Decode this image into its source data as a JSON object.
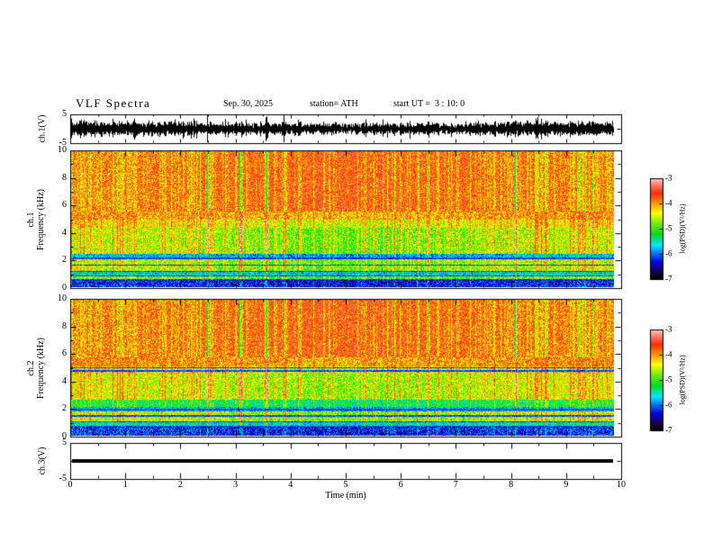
{
  "header": {
    "title": "VLF Spectra",
    "date": "Sep. 30, 2025",
    "station": "station= ATH",
    "start_ut": "start UT =  3 : 10: 0"
  },
  "xaxis": {
    "label": "Time (min)",
    "ticks": [
      "0",
      "1",
      "2",
      "3",
      "4",
      "5",
      "6",
      "7",
      "8",
      "9",
      "10"
    ]
  },
  "colorbar": {
    "label": "log(PSD)(V²/Hz)",
    "ticks": [
      "-3",
      "-4",
      "-5",
      "-6",
      "-7"
    ]
  },
  "panels": {
    "ch1_wave": {
      "ylabel": "ch.1(V)",
      "ytick_top": "5",
      "ytick_bottom": "-5"
    },
    "ch1_spec": {
      "ylabel_line1": "ch.1",
      "ylabel_line2": "Frequency (kHz)",
      "yticks": [
        "0",
        "2",
        "4",
        "6",
        "8",
        "10"
      ]
    },
    "ch2_spec": {
      "ylabel_line1": "ch.2",
      "ylabel_line2": "Frequency (kHz)",
      "yticks": [
        "0",
        "2",
        "4",
        "6",
        "8",
        "10"
      ]
    },
    "ch3_wave": {
      "ylabel": "ch.3(V)",
      "ytick_top": "5",
      "ytick_bottom": "-5"
    }
  },
  "colors": {
    "background": "#ffffff",
    "axis": "#000000",
    "trace": "#000000",
    "colormap_stops": [
      {
        "t": 0.0,
        "c": "#000000"
      },
      {
        "t": 0.06,
        "c": "#1a0040"
      },
      {
        "t": 0.16,
        "c": "#0000e0"
      },
      {
        "t": 0.26,
        "c": "#0080ff"
      },
      {
        "t": 0.33,
        "c": "#00e8ff"
      },
      {
        "t": 0.44,
        "c": "#00dd22"
      },
      {
        "t": 0.56,
        "c": "#7fee00"
      },
      {
        "t": 0.65,
        "c": "#ffff00"
      },
      {
        "t": 0.75,
        "c": "#ff9900"
      },
      {
        "t": 0.85,
        "c": "#ff2a00"
      },
      {
        "t": 0.93,
        "c": "#ff7766"
      },
      {
        "t": 1.0,
        "c": "#ffc8c8"
      }
    ]
  },
  "chart_data": [
    {
      "type": "line",
      "panel": "ch1_waveform",
      "title": "",
      "ylabel": "ch.1(V)",
      "xlabel": "Time (min)",
      "xlim": [
        0,
        10
      ],
      "ylim": [
        -5,
        5
      ],
      "x_data_span_min": 9.85,
      "description": "Dense broadband VLF voltage noise centered on 0 V with envelope about ±2 V and impulsive sferic spikes reaching ±5 V throughout the 10-minute record",
      "noise_amplitude": 1.15,
      "spike_gain": 1.9,
      "seed": 91
    },
    {
      "type": "heatmap",
      "panel": "ch1_spectrogram",
      "title": "",
      "ylabel": "ch.1 Frequency (kHz)",
      "xlabel": "Time (min)",
      "zlabel": "log(PSD)(V²/Hz)",
      "xlim": [
        0,
        10
      ],
      "ylim": [
        0,
        10
      ],
      "zlim": [
        -7,
        -3
      ],
      "x_data_span_min": 9.85,
      "noise_sigma": 0.45,
      "seed": 42,
      "streak_seed": 7,
      "description": "Spectrogram: intense red band above ~5.6 kHz (PSD ~ -3.5), yellow transition 5-5.6 kHz, green 2.5-5 kHz with vertical sferic streaks, dark blue band near 2-2.4 kHz, green 1.2-2 kHz, blue band 0.8-1.1 kHz, dark below 0.5 kHz; thin dark horizontal lines",
      "bands": [
        {
          "f0": 5.6,
          "f1": 10.01,
          "level": -3.55,
          "sg": -0.85
        },
        {
          "f0": 5.0,
          "f1": 5.6,
          "level": -4.25,
          "sg": 0.5
        },
        {
          "f0": 4.35,
          "f1": 5.0,
          "level": -4.7,
          "sg": 0.9
        },
        {
          "f0": 2.45,
          "f1": 4.35,
          "level": -5.05,
          "sg": 1.1
        },
        {
          "f0": 2.0,
          "f1": 2.45,
          "level": -6.05,
          "sg": 0.6
        },
        {
          "f0": 1.15,
          "f1": 2.0,
          "level": -5.0,
          "sg": 0.9
        },
        {
          "f0": 0.8,
          "f1": 1.15,
          "level": -5.85,
          "sg": 0.5
        },
        {
          "f0": 0.5,
          "f1": 0.8,
          "level": -5.15,
          "sg": 0.7
        },
        {
          "f0": 0.0,
          "f1": 0.5,
          "level": -6.4,
          "sg": 0.3
        }
      ],
      "dark_lines": [
        2.1,
        1.6,
        1.15,
        0.8,
        0.5
      ]
    },
    {
      "type": "heatmap",
      "panel": "ch2_spectrogram",
      "title": "",
      "ylabel": "ch.2 Frequency (kHz)",
      "xlabel": "Time (min)",
      "zlabel": "log(PSD)(V²/Hz)",
      "xlim": [
        0,
        10
      ],
      "ylim": [
        0,
        10
      ],
      "zlim": [
        -7,
        -3
      ],
      "x_data_span_min": 9.85,
      "noise_sigma": 0.45,
      "seed": 77,
      "streak_seed": 7,
      "description": "Spectrogram similar to ch.1: red above ~5.8 kHz, yellow-green 2.6-5.1 kHz with vertical sferic streaks, cyan band 2.1-2.65 kHz, green 1-1.75 kHz, dark bands below 1 kHz; thin dark horizontal lines near 5.0 and 4.75 kHz",
      "bands": [
        {
          "f0": 5.8,
          "f1": 10.01,
          "level": -3.55,
          "sg": -0.85
        },
        {
          "f0": 5.1,
          "f1": 5.8,
          "level": -4.2,
          "sg": 0.5
        },
        {
          "f0": 4.55,
          "f1": 5.1,
          "level": -4.6,
          "sg": 0.8
        },
        {
          "f0": 2.65,
          "f1": 4.55,
          "level": -4.9,
          "sg": 1.0
        },
        {
          "f0": 2.1,
          "f1": 2.65,
          "level": -5.5,
          "sg": 0.7
        },
        {
          "f0": 1.75,
          "f1": 2.1,
          "level": -5.95,
          "sg": 0.5
        },
        {
          "f0": 1.0,
          "f1": 1.75,
          "level": -4.95,
          "sg": 0.9
        },
        {
          "f0": 0.65,
          "f1": 1.0,
          "level": -5.75,
          "sg": 0.5
        },
        {
          "f0": 0.0,
          "f1": 0.65,
          "level": -6.35,
          "sg": 0.3
        }
      ],
      "dark_lines": [
        5.0,
        4.75,
        1.9,
        1.45,
        1.0,
        0.65
      ]
    },
    {
      "type": "line",
      "panel": "ch3_waveform",
      "title": "",
      "ylabel": "ch.3(V)",
      "xlabel": "Time (min)",
      "xlim": [
        0,
        10
      ],
      "ylim": [
        -5,
        5
      ],
      "x_data_span_min": 9.85,
      "description": "Flat thick black trace at 0 V for the whole record (channel inactive)",
      "value": 0
    }
  ]
}
